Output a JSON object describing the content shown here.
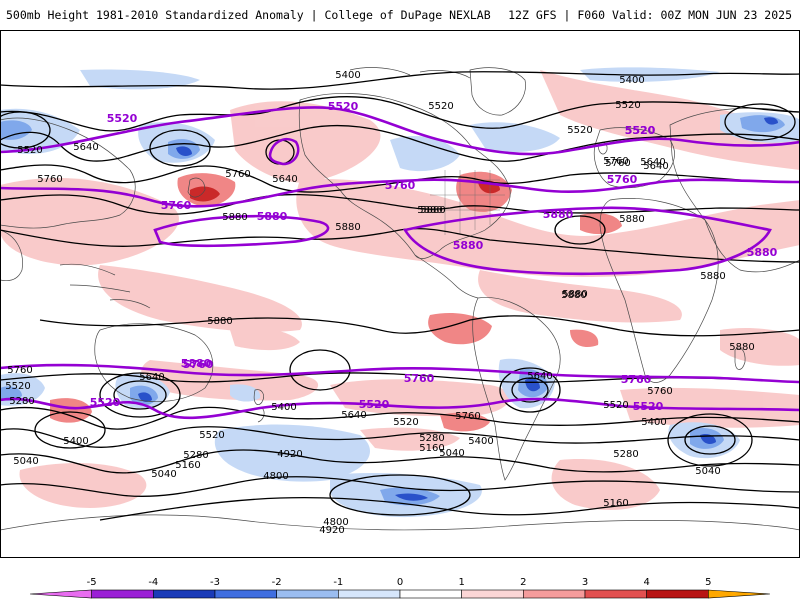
{
  "header": {
    "title_left": "500mb Height 1981-2010 Standardized Anomaly | College of DuPage NEXLAB",
    "title_right": "12Z GFS | F060 Valid: 00Z MON JUN 23 2025"
  },
  "contour_labels": {
    "black": [
      {
        "text": "5400"
      },
      {
        "text": "5400"
      },
      {
        "text": "5520"
      },
      {
        "text": "5520"
      },
      {
        "text": "5520"
      },
      {
        "text": "5520"
      },
      {
        "text": "5640"
      },
      {
        "text": "5640"
      },
      {
        "text": "5760"
      },
      {
        "text": "5760"
      },
      {
        "text": "5760"
      },
      {
        "text": "5640"
      },
      {
        "text": "5880"
      },
      {
        "text": "5880"
      },
      {
        "text": "5880"
      },
      {
        "text": "5880"
      },
      {
        "text": "5880"
      },
      {
        "text": "5880"
      },
      {
        "text": "5880"
      },
      {
        "text": "5880"
      },
      {
        "text": "5760"
      },
      {
        "text": "5520"
      },
      {
        "text": "5280"
      },
      {
        "text": "5640"
      },
      {
        "text": "5400"
      },
      {
        "text": "5520"
      },
      {
        "text": "5040"
      },
      {
        "text": "5160"
      },
      {
        "text": "5280"
      },
      {
        "text": "5040"
      },
      {
        "text": "4920"
      },
      {
        "text": "4800"
      },
      {
        "text": "4800"
      },
      {
        "text": "4920"
      },
      {
        "text": "5400"
      },
      {
        "text": "5640"
      },
      {
        "text": "5520"
      },
      {
        "text": "5280"
      },
      {
        "text": "5160"
      },
      {
        "text": "5040"
      },
      {
        "text": "5400"
      },
      {
        "text": "5760"
      },
      {
        "text": "5640"
      },
      {
        "text": "5160"
      },
      {
        "text": "5760"
      },
      {
        "text": "5520"
      },
      {
        "text": "5400"
      },
      {
        "text": "5280"
      },
      {
        "text": "5040"
      },
      {
        "text": "5880"
      },
      {
        "text": "5880"
      },
      {
        "text": "5640"
      },
      {
        "text": "5760"
      }
    ],
    "purple": [
      {
        "text": "5520"
      },
      {
        "text": "5520"
      },
      {
        "text": "5520"
      },
      {
        "text": "5760"
      },
      {
        "text": "5880"
      },
      {
        "text": "5760"
      },
      {
        "text": "5880"
      },
      {
        "text": "5880"
      },
      {
        "text": "5760"
      },
      {
        "text": "5880"
      },
      {
        "text": "5880"
      },
      {
        "text": "5760"
      },
      {
        "text": "5520"
      },
      {
        "text": "5760"
      },
      {
        "text": "5520"
      },
      {
        "text": "5520"
      },
      {
        "text": "5760"
      },
      {
        "text": "5520"
      }
    ]
  },
  "colorbar": {
    "ticks": [
      "-5",
      "-4",
      "-3",
      "-2",
      "-1",
      "0",
      "1",
      "2",
      "3",
      "4",
      "5"
    ],
    "colors": [
      "#e86cf0",
      "#9b1fd6",
      "#1a3bb8",
      "#3f6ee0",
      "#9bbdf0",
      "#d6e6fb",
      "#ffffff",
      "#fbd6d6",
      "#f59c9c",
      "#e25050",
      "#b81414",
      "#ffa800"
    ]
  },
  "styles": {
    "contour_color": "#000000",
    "highlight_color": "#9400d3",
    "positive_anomaly": "#f4a6a6",
    "negative_anomaly": "#8fb4ee"
  }
}
